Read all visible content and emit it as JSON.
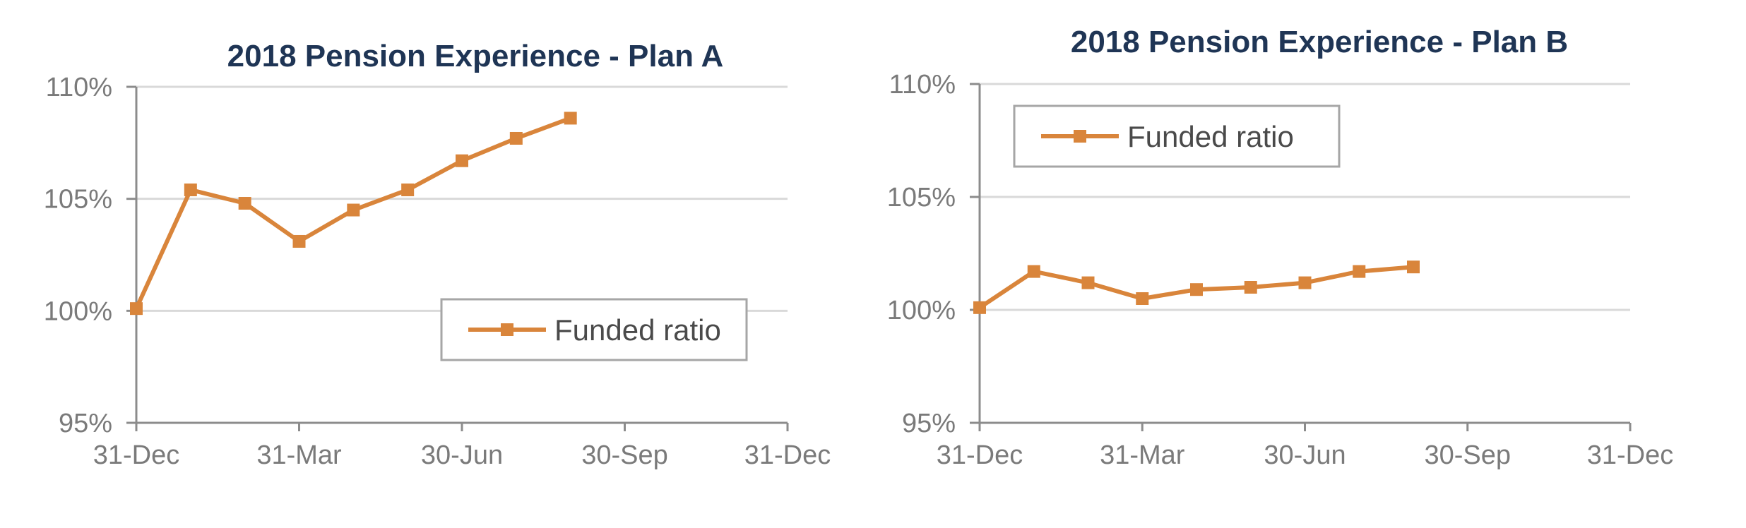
{
  "chart_data": [
    {
      "type": "line",
      "title": "2018 Pension Experience - Plan A",
      "xlabel": "",
      "ylabel": "",
      "x_ticks": [
        "31-Dec",
        "31-Mar",
        "30-Jun",
        "30-Sep",
        "31-Dec"
      ],
      "y_ticks": [
        "95%",
        "100%",
        "105%",
        "110%"
      ],
      "ylim": [
        95,
        110
      ],
      "x_range_months": [
        0,
        12
      ],
      "grid": true,
      "legend": {
        "position": "bottom-right",
        "entries": [
          "Funded ratio"
        ]
      },
      "series": [
        {
          "name": "Funded ratio",
          "color": "#d9853b",
          "marker": "square",
          "x": [
            0,
            1,
            2,
            3,
            4,
            5,
            6,
            7,
            8
          ],
          "values": [
            100.1,
            105.4,
            104.8,
            103.1,
            104.5,
            105.4,
            106.7,
            107.7,
            108.6
          ]
        }
      ]
    },
    {
      "type": "line",
      "title": "2018 Pension Experience - Plan B",
      "xlabel": "",
      "ylabel": "",
      "x_ticks": [
        "31-Dec",
        "31-Mar",
        "30-Jun",
        "30-Sep",
        "31-Dec"
      ],
      "y_ticks": [
        "95%",
        "100%",
        "105%",
        "110%"
      ],
      "ylim": [
        95,
        110
      ],
      "x_range_months": [
        0,
        12
      ],
      "grid": true,
      "legend": {
        "position": "top-left",
        "entries": [
          "Funded ratio"
        ]
      },
      "series": [
        {
          "name": "Funded ratio",
          "color": "#d9853b",
          "marker": "square",
          "x": [
            0,
            1,
            2,
            3,
            4,
            5,
            6,
            7,
            8
          ],
          "values": [
            100.1,
            101.7,
            101.2,
            100.5,
            100.9,
            101.0,
            101.2,
            101.7,
            101.9
          ]
        }
      ]
    }
  ]
}
